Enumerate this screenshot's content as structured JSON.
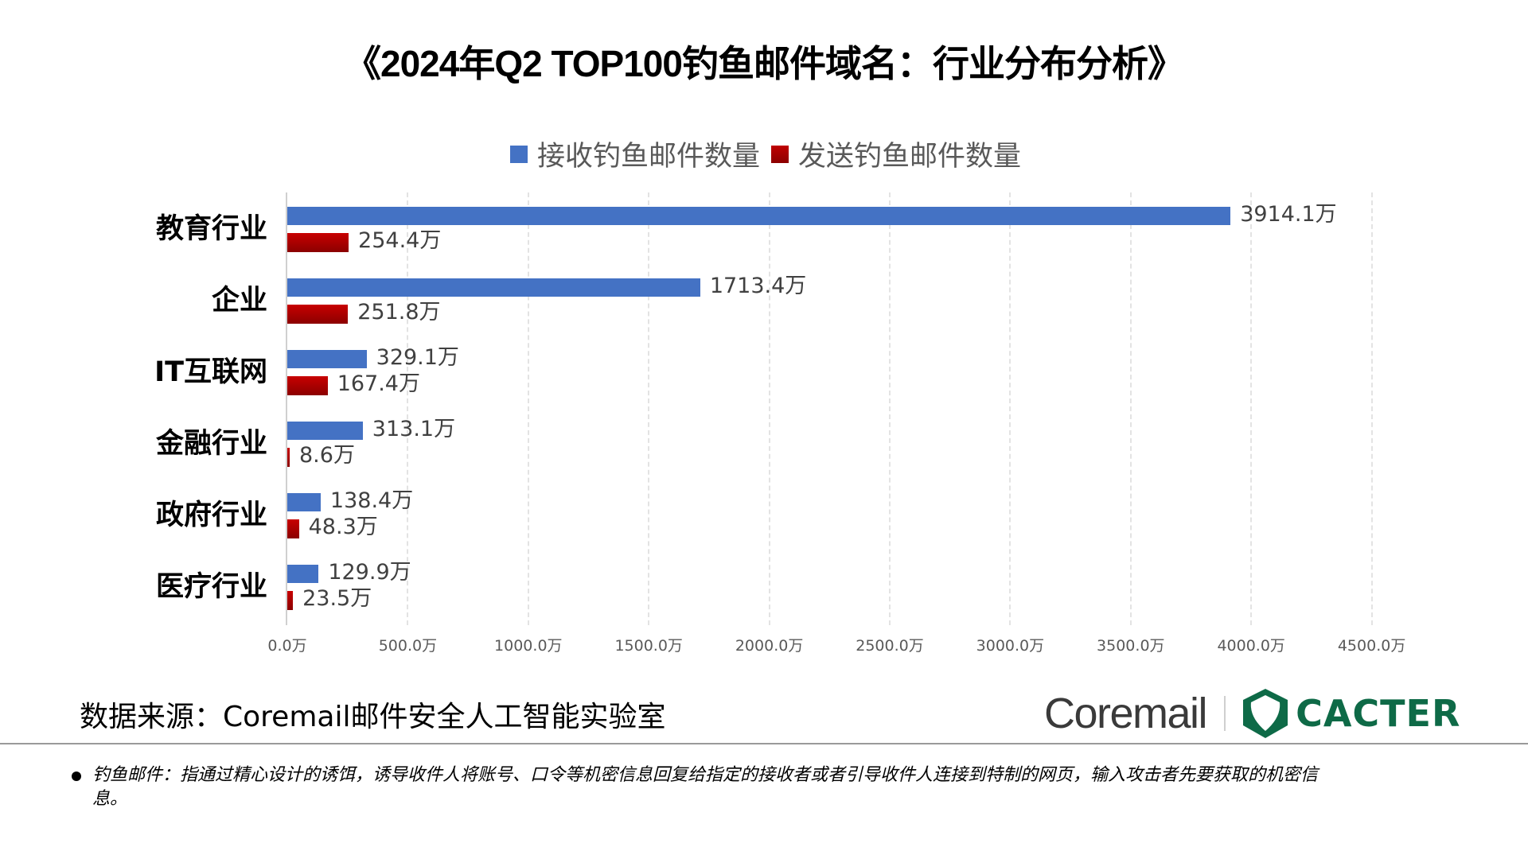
{
  "title": "《2024年Q2 TOP100钓鱼邮件域名：行业分布分析》",
  "legend": {
    "received": {
      "label": "接收钓鱼邮件数量",
      "color": "#4472c4"
    },
    "sent": {
      "label": "发送钓鱼邮件数量",
      "color": "#c00000"
    }
  },
  "categories": [
    {
      "label": "教育行业",
      "received": "3914.1万",
      "sent": "254.4万"
    },
    {
      "label": "企业",
      "received": "1713.4万",
      "sent": "251.8万"
    },
    {
      "label": "IT互联网",
      "received": "329.1万",
      "sent": "167.4万"
    },
    {
      "label": "金融行业",
      "received": "313.1万",
      "sent": "8.6万"
    },
    {
      "label": "政府行业",
      "received": "138.4万",
      "sent": "48.3万"
    },
    {
      "label": "医疗行业",
      "received": "129.9万",
      "sent": "23.5万"
    }
  ],
  "x_ticks": [
    "0.0万",
    "500.0万",
    "1000.0万",
    "1500.0万",
    "2000.0万",
    "2500.0万",
    "3000.0万",
    "3500.0万",
    "4000.0万",
    "4500.0万"
  ],
  "source": "数据来源：Coremail邮件安全人工智能实验室",
  "logos": {
    "coremail": "Coremail",
    "cacter": "CACTER",
    "cacter_color": "#0e6a47"
  },
  "footnote": "钓鱼邮件：指通过精心设计的诱饵，诱导收件人将账号、口令等机密信息回复给指定的接收者或者引导收件人连接到特制的网页，输入攻击者先要获取的机密信息。",
  "chart_data": {
    "type": "bar",
    "orientation": "horizontal",
    "title": "《2024年Q2 TOP100钓鱼邮件域名：行业分布分析》",
    "categories": [
      "教育行业",
      "企业",
      "IT互联网",
      "金融行业",
      "政府行业",
      "医疗行业"
    ],
    "series": [
      {
        "name": "接收钓鱼邮件数量",
        "color": "#4472c4",
        "values": [
          3914.1,
          1713.4,
          329.1,
          313.1,
          138.4,
          129.9
        ]
      },
      {
        "name": "发送钓鱼邮件数量",
        "color": "#c00000",
        "values": [
          254.4,
          251.8,
          167.4,
          8.6,
          48.3,
          23.5
        ]
      }
    ],
    "unit": "万",
    "xlabel": "",
    "ylabel": "",
    "xlim": [
      0,
      4500
    ],
    "x_tick_step": 500,
    "grid": "vertical dashed",
    "legend_position": "top",
    "data_labels": true
  }
}
